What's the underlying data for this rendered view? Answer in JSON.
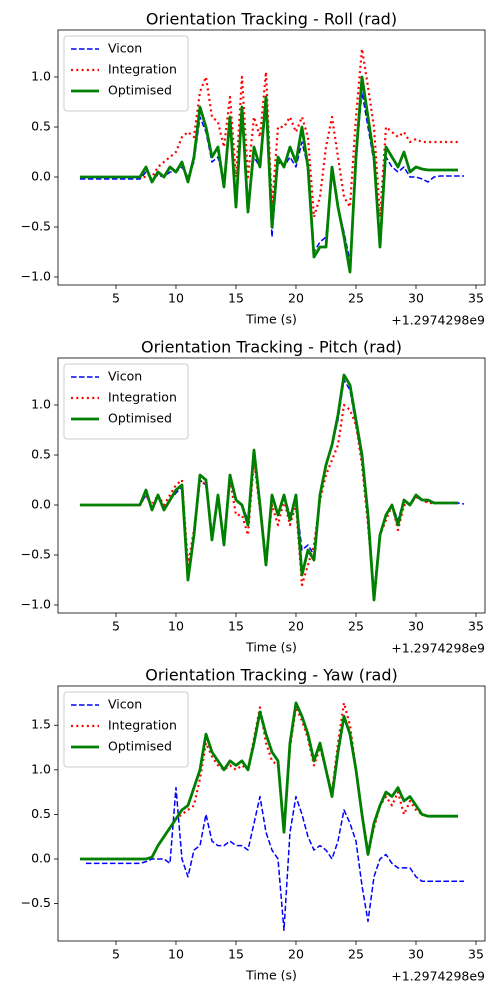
{
  "chart_data": [
    {
      "type": "line",
      "title": "Orientation Tracking - Roll (rad)",
      "xlabel": "Time (s)",
      "x_offset_label": "+1.2974298e9",
      "x": [
        2,
        2.5,
        3,
        3.5,
        4,
        4.5,
        5,
        5.5,
        6,
        6.5,
        7,
        7.5,
        8,
        8.5,
        9,
        9.5,
        10,
        10.5,
        11,
        11.5,
        12,
        12.5,
        13,
        13.5,
        14,
        14.5,
        15,
        15.5,
        16,
        16.5,
        17,
        17.5,
        18,
        18.5,
        19,
        19.5,
        20,
        20.5,
        21,
        21.5,
        22,
        22.5,
        23,
        23.5,
        24,
        24.5,
        25,
        25.5,
        26,
        26.5,
        27,
        27.5,
        28,
        28.5,
        29,
        29.5,
        30,
        30.5,
        31,
        31.5,
        32,
        32.5,
        33,
        33.5,
        34
      ],
      "xlim": [
        0.17,
        35.75
      ],
      "xticks": [
        5,
        10,
        15,
        20,
        25,
        30,
        35
      ],
      "ylim": [
        -1.08,
        1.47
      ],
      "yticks": [
        {
          "value": -1,
          "label": "−1.0"
        },
        {
          "value": -0.5,
          "label": "−0.5"
        },
        {
          "value": 0,
          "label": "0.0"
        },
        {
          "value": 0.5,
          "label": "0.5"
        },
        {
          "value": 1,
          "label": "1.0"
        }
      ],
      "legend": "upper left",
      "series": [
        {
          "name": "Vicon",
          "color": "#0000ff",
          "style": "dashed",
          "values": [
            -0.02,
            -0.02,
            -0.02,
            -0.02,
            -0.02,
            -0.02,
            -0.02,
            -0.02,
            -0.02,
            -0.02,
            -0.02,
            0.05,
            -0.02,
            0.02,
            0,
            0.05,
            0.05,
            0.1,
            0,
            0.15,
            0.6,
            0.45,
            0.15,
            0.2,
            -0.05,
            0.5,
            -0.2,
            0.6,
            -0.3,
            0.2,
            0.1,
            0.7,
            -0.6,
            0.15,
            0.1,
            0.2,
            0.1,
            0.35,
            0.1,
            -0.75,
            -0.65,
            -0.6,
            0.05,
            -0.3,
            -0.55,
            -0.85,
            0.2,
            0.85,
            0.5,
            0.15,
            -0.65,
            0.2,
            0.1,
            0.05,
            0.1,
            0,
            0,
            -0.02,
            -0.05,
            0,
            0.01,
            0.01,
            0.01,
            0.01,
            0.01
          ]
        },
        {
          "name": "Integration",
          "color": "#ff0000",
          "style": "dotted",
          "values": [
            0,
            0,
            0,
            0,
            0,
            0,
            0,
            0,
            0,
            0,
            0,
            0,
            0,
            0.1,
            0.15,
            0.2,
            0.25,
            0.4,
            0.45,
            0.4,
            0.85,
            1,
            0.6,
            0.55,
            0.3,
            0.8,
            0,
            1,
            0,
            0.6,
            0.4,
            1.05,
            -0.3,
            0.5,
            0.5,
            0.6,
            0.45,
            0.6,
            0.4,
            -0.4,
            -0.2,
            0.3,
            0.6,
            0.2,
            -0.2,
            -0.3,
            0.6,
            1.28,
            0.9,
            0.5,
            -0.4,
            0.5,
            0.45,
            0.4,
            0.45,
            0.35,
            0.38,
            0.35,
            0.35,
            0.35,
            0.35,
            0.35,
            0.35,
            0.35,
            null
          ]
        },
        {
          "name": "Optimised",
          "color": "#008000",
          "style": "solid",
          "values": [
            0,
            0,
            0,
            0,
            0,
            0,
            0,
            0,
            0,
            0,
            0,
            0.1,
            -0.05,
            0.05,
            0,
            0.1,
            0.05,
            0.15,
            -0.05,
            0.2,
            0.7,
            0.5,
            0.2,
            0.3,
            -0.1,
            0.6,
            -0.3,
            0.7,
            -0.35,
            0.3,
            0.1,
            0.8,
            -0.5,
            0.2,
            0.1,
            0.3,
            0.15,
            0.5,
            0.1,
            -0.8,
            -0.7,
            -0.7,
            0.1,
            -0.3,
            -0.6,
            -0.95,
            0.2,
            1,
            0.6,
            0.2,
            -0.7,
            0.3,
            0.2,
            0.1,
            0.25,
            0.05,
            0.1,
            0.08,
            0.07,
            0.07,
            0.07,
            0.07,
            0.07,
            0.07,
            null
          ]
        }
      ]
    },
    {
      "type": "line",
      "title": "Orientation Tracking - Pitch (rad)",
      "xlabel": "Time (s)",
      "x_offset_label": "+1.2974298e9",
      "x": [
        2,
        2.5,
        3,
        3.5,
        4,
        4.5,
        5,
        5.5,
        6,
        6.5,
        7,
        7.5,
        8,
        8.5,
        9,
        9.5,
        10,
        10.5,
        11,
        11.5,
        12,
        12.5,
        13,
        13.5,
        14,
        14.5,
        15,
        15.5,
        16,
        16.5,
        17,
        17.5,
        18,
        18.5,
        19,
        19.5,
        20,
        20.5,
        21,
        21.5,
        22,
        22.5,
        23,
        23.5,
        24,
        24.5,
        25,
        25.5,
        26,
        26.5,
        27,
        27.5,
        28,
        28.5,
        29,
        29.5,
        30,
        30.5,
        31,
        31.5,
        32,
        32.5,
        33,
        33.5,
        34
      ],
      "xlim": [
        0.17,
        35.75
      ],
      "xticks": [
        5,
        10,
        15,
        20,
        25,
        30,
        35
      ],
      "ylim": [
        -1.08,
        1.47
      ],
      "yticks": [
        {
          "value": -1,
          "label": "−1.0"
        },
        {
          "value": -0.5,
          "label": "−0.5"
        },
        {
          "value": 0,
          "label": "0.0"
        },
        {
          "value": 0.5,
          "label": "0.5"
        },
        {
          "value": 1,
          "label": "1.0"
        }
      ],
      "legend": "upper left",
      "series": [
        {
          "name": "Vicon",
          "color": "#0000ff",
          "style": "dashed",
          "values": [
            0,
            0,
            0,
            0,
            0,
            0,
            0,
            0,
            0,
            0,
            0,
            0.1,
            -0.03,
            0.08,
            -0.03,
            0.05,
            0.12,
            0.18,
            -0.7,
            -0.3,
            0.25,
            0.2,
            -0.3,
            0.08,
            -0.35,
            0.25,
            0.05,
            0,
            -0.15,
            0.5,
            0,
            -0.55,
            0.1,
            -0.1,
            0.1,
            -0.1,
            0.05,
            -0.45,
            -0.4,
            -0.5,
            0.1,
            0.4,
            0.6,
            0.85,
            1.25,
            1.15,
            0.8,
            0.45,
            -0.1,
            -0.9,
            -0.3,
            -0.1,
            0,
            -0.15,
            0.05,
            0,
            0.08,
            0.05,
            0.03,
            0.02,
            0.02,
            0.02,
            0.02,
            0.02,
            0.01
          ]
        },
        {
          "name": "Integration",
          "color": "#ff0000",
          "style": "dotted",
          "values": [
            0,
            0,
            0,
            0,
            0,
            0,
            0,
            0,
            0,
            0,
            0,
            0.1,
            0,
            0.1,
            0,
            0.1,
            0.2,
            0.25,
            -0.6,
            -0.25,
            0.25,
            0.2,
            -0.3,
            0.05,
            -0.35,
            0.25,
            -0.1,
            -0.1,
            -0.3,
            0.45,
            -0.05,
            -0.55,
            0,
            -0.2,
            0.05,
            -0.2,
            0,
            -0.8,
            -0.6,
            -0.4,
            0.05,
            0.3,
            0.45,
            0.6,
            1,
            0.95,
            0.8,
            0.4,
            -0.2,
            -0.9,
            -0.3,
            -0.15,
            0,
            -0.25,
            0,
            0,
            0.08,
            0.05,
            0.02,
            0.02,
            0.02,
            0.02,
            0.02,
            0.02,
            null
          ]
        },
        {
          "name": "Optimised",
          "color": "#008000",
          "style": "solid",
          "values": [
            0,
            0,
            0,
            0,
            0,
            0,
            0,
            0,
            0,
            0,
            0,
            0.15,
            -0.05,
            0.1,
            -0.05,
            0.05,
            0.15,
            0.2,
            -0.75,
            -0.3,
            0.3,
            0.25,
            -0.35,
            0.1,
            -0.4,
            0.3,
            0.05,
            0,
            -0.2,
            0.55,
            0,
            -0.6,
            0.1,
            -0.1,
            0.1,
            -0.15,
            0.1,
            -0.7,
            -0.45,
            -0.55,
            0.1,
            0.4,
            0.6,
            0.9,
            1.3,
            1.2,
            0.85,
            0.5,
            -0.1,
            -0.95,
            -0.3,
            -0.1,
            0,
            -0.2,
            0.05,
            0,
            0.1,
            0.05,
            0.05,
            0.02,
            0.02,
            0.02,
            0.02,
            0.02,
            null
          ]
        }
      ]
    },
    {
      "type": "line",
      "title": "Orientation Tracking - Yaw (rad)",
      "xlabel": "Time (s)",
      "x_offset_label": "+1.2974298e9",
      "x": [
        2,
        2.5,
        3,
        3.5,
        4,
        4.5,
        5,
        5.5,
        6,
        6.5,
        7,
        7.5,
        8,
        8.5,
        9,
        9.5,
        10,
        10.5,
        11,
        11.5,
        12,
        12.5,
        13,
        13.5,
        14,
        14.5,
        15,
        15.5,
        16,
        16.5,
        17,
        17.5,
        18,
        18.5,
        19,
        19.5,
        20,
        20.5,
        21,
        21.5,
        22,
        22.5,
        23,
        23.5,
        24,
        24.5,
        25,
        25.5,
        26,
        26.5,
        27,
        27.5,
        28,
        28.5,
        29,
        29.5,
        30,
        30.5,
        31,
        31.5,
        32,
        32.5,
        33,
        33.5,
        34
      ],
      "xlim": [
        0.17,
        35.75
      ],
      "xticks": [
        5,
        10,
        15,
        20,
        25,
        30,
        35
      ],
      "ylim": [
        -0.92,
        1.94
      ],
      "yticks": [
        {
          "value": -0.5,
          "label": "−0.5"
        },
        {
          "value": 0,
          "label": "0.0"
        },
        {
          "value": 0.5,
          "label": "0.5"
        },
        {
          "value": 1,
          "label": "1.0"
        },
        {
          "value": 1.5,
          "label": "1.5"
        }
      ],
      "legend": "upper left",
      "series": [
        {
          "name": "Vicon",
          "color": "#0000ff",
          "style": "dashed",
          "values": [
            null,
            -0.05,
            -0.05,
            -0.05,
            -0.05,
            -0.05,
            -0.05,
            -0.05,
            -0.05,
            -0.05,
            -0.05,
            -0.03,
            0,
            0,
            0,
            -0.05,
            0.8,
            0,
            -0.2,
            0.1,
            0.15,
            0.5,
            0.2,
            0.15,
            0.15,
            0.2,
            0.15,
            0.15,
            0.1,
            0.4,
            0.7,
            0.3,
            0.1,
            0,
            -0.8,
            0.3,
            0.7,
            0.5,
            0.25,
            0.1,
            0.15,
            0.1,
            0,
            0.2,
            0.55,
            0.4,
            0.2,
            -0.3,
            -0.7,
            -0.2,
            0,
            0.05,
            -0.05,
            -0.1,
            -0.1,
            -0.1,
            -0.2,
            -0.25,
            -0.25,
            -0.25,
            -0.25,
            -0.25,
            -0.25,
            -0.25,
            -0.25
          ]
        },
        {
          "name": "Integration",
          "color": "#ff0000",
          "style": "dotted",
          "values": [
            0,
            0,
            0,
            0,
            0,
            0,
            0,
            0,
            0,
            0,
            0,
            0,
            0.02,
            0.15,
            0.25,
            0.35,
            0.45,
            0.5,
            0.55,
            0.6,
            0.9,
            1.3,
            1.15,
            1.05,
            1,
            1.05,
            1,
            1.05,
            1,
            1.35,
            1.7,
            1.3,
            1.1,
            1.05,
            0.35,
            1.25,
            1.7,
            1.55,
            1.35,
            1.05,
            1.25,
            1,
            0.75,
            1.3,
            1.75,
            1.5,
            1,
            0.5,
            0.1,
            0.35,
            0.6,
            0.7,
            0.6,
            0.75,
            0.5,
            0.65,
            0.55,
            0.5,
            0.48,
            0.48,
            0.48,
            0.48,
            0.48,
            0.48,
            null
          ]
        },
        {
          "name": "Optimised",
          "color": "#008000",
          "style": "solid",
          "values": [
            0,
            0,
            0,
            0,
            0,
            0,
            0,
            0,
            0,
            0,
            0,
            0,
            0.02,
            0.15,
            0.25,
            0.35,
            0.45,
            0.55,
            0.6,
            0.8,
            1,
            1.4,
            1.2,
            1.1,
            1,
            1.1,
            1.05,
            1.1,
            1,
            1.3,
            1.65,
            1.4,
            1.2,
            1.1,
            0.3,
            1.3,
            1.75,
            1.6,
            1.4,
            1.1,
            1.3,
            1,
            0.7,
            1.2,
            1.6,
            1.4,
            1,
            0.5,
            0.05,
            0.4,
            0.6,
            0.75,
            0.7,
            0.8,
            0.65,
            0.7,
            0.6,
            0.5,
            0.48,
            0.48,
            0.48,
            0.48,
            0.48,
            0.48,
            null
          ]
        }
      ]
    }
  ]
}
